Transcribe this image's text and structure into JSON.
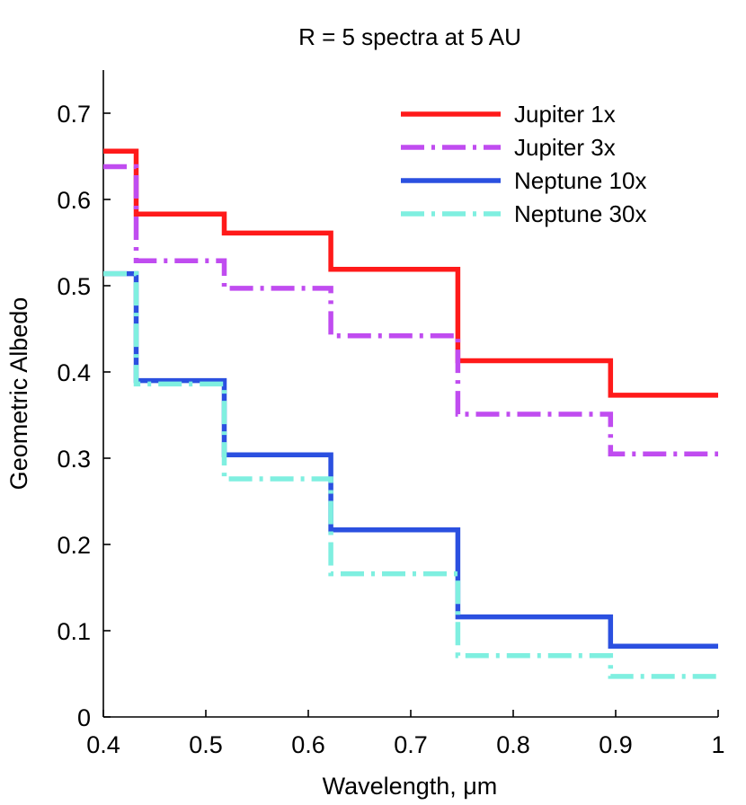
{
  "chart_data": {
    "type": "line",
    "step": true,
    "title": "R = 5 spectra at 5 AU",
    "xlabel": "Wavelength, μm",
    "ylabel": "Geometric Albedo",
    "xlim": [
      0.4,
      1.0
    ],
    "ylim": [
      0,
      0.75
    ],
    "xticks": [
      0.4,
      0.5,
      0.6,
      0.7,
      0.8,
      0.9,
      1.0
    ],
    "xtick_labels": [
      "0.4",
      "0.5",
      "0.6",
      "0.7",
      "0.8",
      "0.9",
      "1"
    ],
    "yticks": [
      0,
      0.1,
      0.2,
      0.3,
      0.4,
      0.5,
      0.6,
      0.7
    ],
    "ytick_labels": [
      "0",
      "0.1",
      "0.2",
      "0.3",
      "0.4",
      "0.5",
      "0.6",
      "0.7"
    ],
    "grid": false,
    "legend_position": "top-right",
    "bin_edges": [
      0.4,
      0.432,
      0.518,
      0.622,
      0.746,
      0.895,
      1.0
    ],
    "series": [
      {
        "name": "Jupiter 1x",
        "color": "#ff1a1a",
        "style": "solid",
        "values": [
          0.656,
          0.583,
          0.561,
          0.519,
          0.413,
          0.373
        ]
      },
      {
        "name": "Jupiter 3x",
        "color": "#c04cf0",
        "style": "dashdot",
        "values": [
          0.638,
          0.529,
          0.497,
          0.442,
          0.351,
          0.305
        ]
      },
      {
        "name": "Neptune 10x",
        "color": "#2b50e0",
        "style": "solid",
        "values": [
          0.514,
          0.39,
          0.304,
          0.217,
          0.116,
          0.082
        ]
      },
      {
        "name": "Neptune 30x",
        "color": "#7fefe0",
        "style": "dashdot",
        "values": [
          0.514,
          0.386,
          0.276,
          0.166,
          0.071,
          0.047
        ]
      }
    ]
  }
}
